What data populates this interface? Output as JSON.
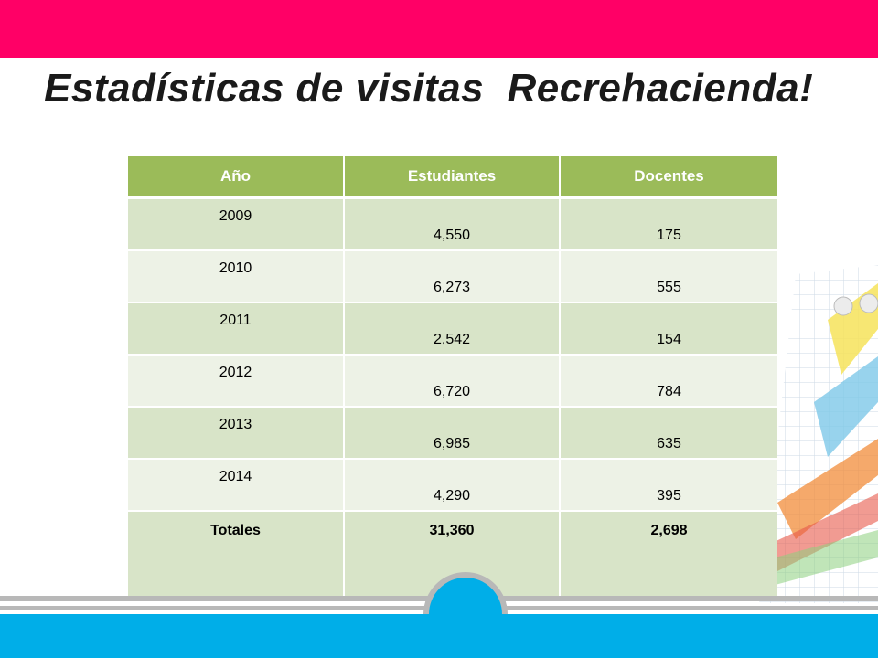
{
  "title": "Estadísticas de visitas  Recrehacienda!",
  "colors": {
    "top_bar": "#ff0066",
    "table_header": "#9bbb59",
    "row_dark": "#d8e4c8",
    "row_light": "#edf2e6",
    "bottom_bar": "#00aee8",
    "bottom_line": "#b8b8b8"
  },
  "table": {
    "headers": [
      "Año",
      "Estudiantes",
      "Docentes"
    ],
    "rows": [
      {
        "year": "2009",
        "students": "4,550",
        "teachers": "175"
      },
      {
        "year": "2010",
        "students": "6,273",
        "teachers": "555"
      },
      {
        "year": "2011",
        "students": "2,542",
        "teachers": "154"
      },
      {
        "year": "2012",
        "students": "6,720",
        "teachers": "784"
      },
      {
        "year": "2013",
        "students": "6,985",
        "teachers": "635"
      },
      {
        "year": "2014",
        "students": "4,290",
        "teachers": "395"
      }
    ],
    "totals": {
      "label": "Totales",
      "students": "31,360",
      "teachers": "2,698"
    }
  }
}
